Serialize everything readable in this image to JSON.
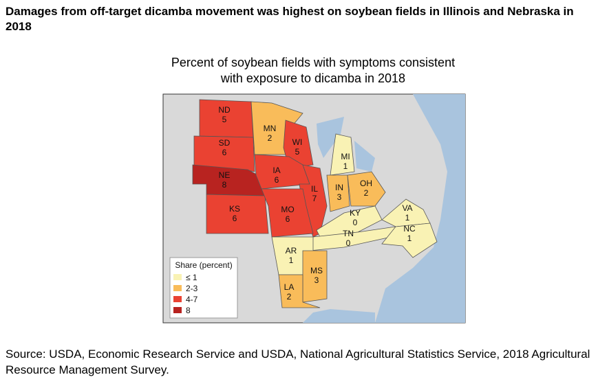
{
  "header": {
    "title": "Damages from off-target dicamba movement was highest on soybean fields in Illinois and Nebraska in 2018"
  },
  "map": {
    "subtitle": "Percent of soybean fields with symptoms consistent with exposure to dicamba in 2018",
    "states": [
      {
        "abbr": "ND",
        "value": 5,
        "color": "#ea4232"
      },
      {
        "abbr": "SD",
        "value": 6,
        "color": "#ea4232"
      },
      {
        "abbr": "NE",
        "value": 8,
        "color": "#b82320"
      },
      {
        "abbr": "KS",
        "value": 6,
        "color": "#ea4232"
      },
      {
        "abbr": "MN",
        "value": 2,
        "color": "#f9bc5a"
      },
      {
        "abbr": "WI",
        "value": 5,
        "color": "#ea4232"
      },
      {
        "abbr": "IA",
        "value": 6,
        "color": "#ea4232"
      },
      {
        "abbr": "IL",
        "value": 7,
        "color": "#ea4232"
      },
      {
        "abbr": "MO",
        "value": 6,
        "color": "#ea4232"
      },
      {
        "abbr": "MI",
        "value": 1,
        "color": "#f9f2b4"
      },
      {
        "abbr": "IN",
        "value": 3,
        "color": "#f9bc5a"
      },
      {
        "abbr": "OH",
        "value": 2,
        "color": "#f9bc5a"
      },
      {
        "abbr": "KY",
        "value": 0,
        "color": "#f9f2b4"
      },
      {
        "abbr": "TN",
        "value": 0,
        "color": "#f9f2b4"
      },
      {
        "abbr": "VA",
        "value": 1,
        "color": "#f9f2b4"
      },
      {
        "abbr": "NC",
        "value": 1,
        "color": "#f9f2b4"
      },
      {
        "abbr": "AR",
        "value": 1,
        "color": "#f9f2b4"
      },
      {
        "abbr": "MS",
        "value": 3,
        "color": "#f9bc5a"
      },
      {
        "abbr": "LA",
        "value": 2,
        "color": "#f9bc5a"
      }
    ],
    "legend": {
      "title": "Share (percent)",
      "entries": [
        {
          "label": "≤ 1",
          "color": "#f9f2b4"
        },
        {
          "label": "2-3",
          "color": "#f9bc5a"
        },
        {
          "label": "4-7",
          "color": "#ea4232"
        },
        {
          "label": "8",
          "color": "#b82320"
        }
      ]
    }
  },
  "footer": {
    "source": "Source: USDA, Economic Research Service and USDA, National Agricultural Statistics Service, 2018 Agricultural Resource Management Survey."
  }
}
